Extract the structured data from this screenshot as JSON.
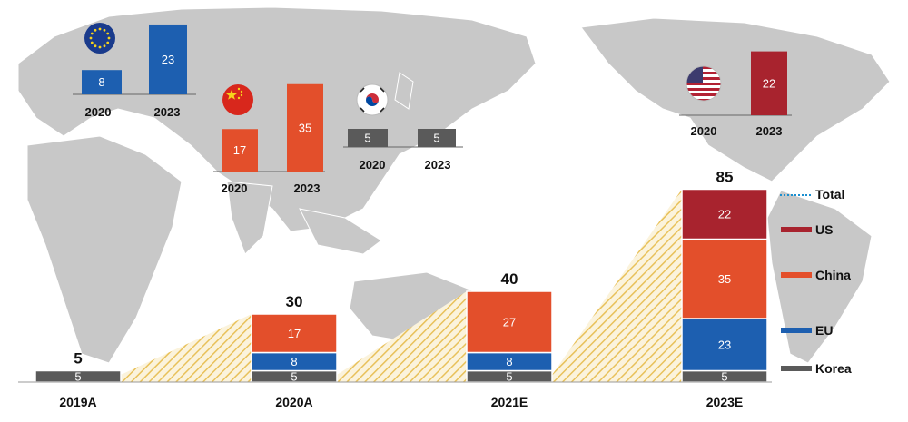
{
  "colors": {
    "korea": "#5a5a5a",
    "eu": "#1d5fb0",
    "china": "#e34f2b",
    "us": "#a8232e",
    "total": "#1a8fd0",
    "map": "#c8c8c8",
    "hatch": "#e8c15a"
  },
  "chart_data": {
    "type": "bar",
    "stacked": true,
    "categories": [
      "2019A",
      "2020A",
      "2021E",
      "2023E"
    ],
    "series": [
      {
        "name": "Korea",
        "color_key": "korea",
        "values": [
          5,
          5,
          5,
          5
        ]
      },
      {
        "name": "EU",
        "color_key": "eu",
        "values": [
          0,
          8,
          8,
          23
        ]
      },
      {
        "name": "China",
        "color_key": "china",
        "values": [
          0,
          17,
          27,
          35
        ]
      },
      {
        "name": "US",
        "color_key": "us",
        "values": [
          0,
          0,
          0,
          22
        ]
      }
    ],
    "totals": [
      5,
      30,
      40,
      85
    ],
    "total_series_name": "Total",
    "legend": [
      "Total",
      "US",
      "China",
      "EU",
      "Korea"
    ],
    "legend_position": "right",
    "grid": false
  },
  "regional_insets": [
    {
      "region": "EU",
      "icon": "eu-flag-icon",
      "color_key": "eu",
      "years": [
        "2020",
        "2023"
      ],
      "values": [
        8,
        23
      ]
    },
    {
      "region": "China",
      "icon": "china-flag-icon",
      "color_key": "china",
      "years": [
        "2020",
        "2023"
      ],
      "values": [
        17,
        35
      ]
    },
    {
      "region": "Korea",
      "icon": "korea-flag-icon",
      "color_key": "korea",
      "years": [
        "2020",
        "2023"
      ],
      "values": [
        5,
        5
      ]
    },
    {
      "region": "US",
      "icon": "us-flag-icon",
      "color_key": "us",
      "years": [
        "2020",
        "2023"
      ],
      "values": [
        null,
        22
      ]
    }
  ]
}
